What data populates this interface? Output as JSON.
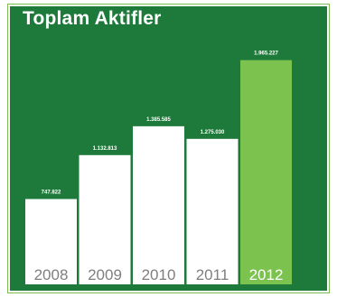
{
  "chart_data": {
    "type": "bar",
    "title": "Toplam Aktifler",
    "categories": [
      "2008",
      "2009",
      "2010",
      "2011",
      "2012"
    ],
    "values": [
      747.822,
      1132.813,
      1385.585,
      1275.03,
      1965.227
    ],
    "value_labels": [
      "747.822",
      "1.132.813",
      "1.385.585",
      "1.275.030",
      "1.965.227"
    ],
    "highlight_index": 4,
    "colors": {
      "background": "#1e7a3a",
      "bar": "#ffffff",
      "highlight_bar": "#7cc24e",
      "category_text": "#7f7f7f",
      "highlight_category_text": "#ffffff",
      "value_text": "#ffffff"
    },
    "grid": false,
    "legend": "none"
  }
}
